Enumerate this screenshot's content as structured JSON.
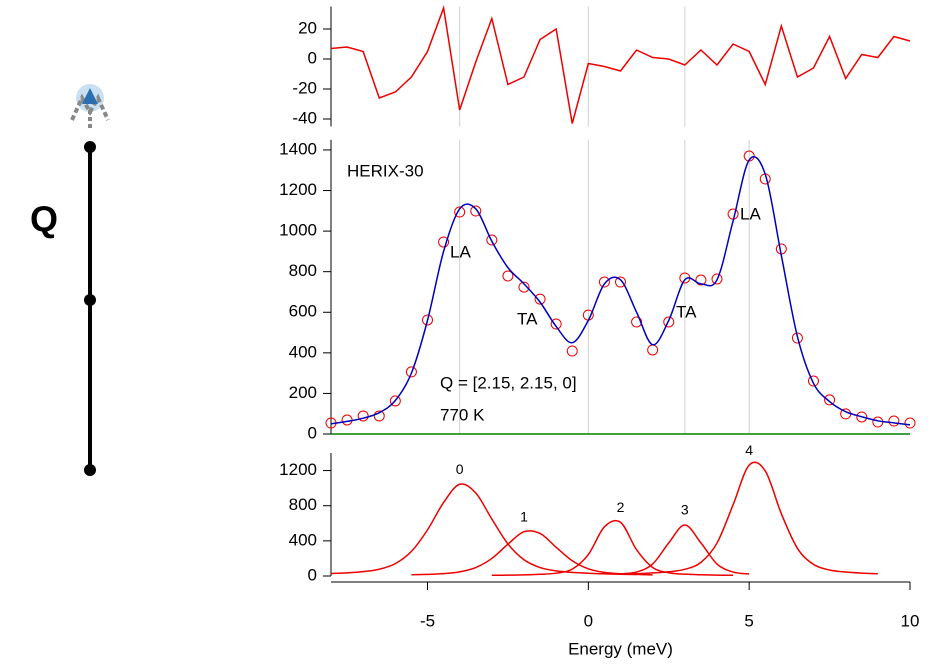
{
  "side_label": "Q",
  "chart_data": [
    {
      "type": "line",
      "x": [
        -8,
        -7.5,
        -7,
        -6.5,
        -6,
        -5.5,
        -5,
        -4.5,
        -4,
        -3.5,
        -3,
        -2.5,
        -2,
        -1.5,
        -1,
        -0.5,
        0,
        0.5,
        1,
        1.5,
        2,
        2.5,
        3,
        3.5,
        4,
        4.5,
        5,
        5.5,
        6,
        6.5,
        7,
        7.5,
        8,
        8.5,
        9,
        9.5,
        10
      ],
      "xlim": [
        -8,
        10
      ],
      "ylim": [
        -45,
        35
      ],
      "yticks": [
        -40,
        -20,
        0,
        20
      ],
      "vlines": [
        -4,
        0,
        3
      ],
      "series": [
        {
          "color": "#ee0000",
          "style": "line",
          "smooth": false,
          "values": [
            7,
            8,
            5,
            -26,
            -22,
            -12,
            5,
            34,
            -34,
            -2,
            27,
            -17,
            -12,
            13,
            20,
            -43,
            -3,
            -5,
            -8,
            6,
            1,
            0,
            -4,
            6,
            -4,
            10,
            5,
            -17,
            22,
            -12,
            -6,
            15,
            -13,
            3,
            1,
            15,
            12
          ]
        }
      ]
    },
    {
      "type": "line",
      "x": [
        -8,
        -7.5,
        -7,
        -6.5,
        -6,
        -5.5,
        -5,
        -4.5,
        -4,
        -3.5,
        -3,
        -2.5,
        -2,
        -1.5,
        -1,
        -0.5,
        0,
        0.5,
        1,
        1.5,
        2,
        2.5,
        3,
        3.5,
        4,
        4.5,
        5,
        5.5,
        6,
        6.5,
        7,
        7.5,
        8,
        8.5,
        9,
        9.5,
        10
      ],
      "xlim": [
        -8,
        10
      ],
      "ylim": [
        0,
        1450
      ],
      "yticks": [
        0,
        200,
        400,
        600,
        800,
        1000,
        1200,
        1400
      ],
      "vlines": [
        -4,
        0,
        3,
        5
      ],
      "baseline_color": "#008000",
      "annotations": [
        "HERIX-30",
        "LA",
        "TA",
        "TA",
        "LA",
        "Q = [2.15, 2.15, 0]",
        "770 K"
      ],
      "series": [
        {
          "color": "#ee0000",
          "style": "markers",
          "values": [
            54,
            69,
            89,
            89,
            163,
            306,
            562,
            946,
            1094,
            1099,
            956,
            779,
            724,
            665,
            542,
            409,
            586,
            749,
            749,
            552,
            414,
            552,
            769,
            759,
            764,
            1084,
            1370,
            1257,
            912,
            473,
            261,
            168,
            99,
            84,
            59,
            64,
            54
          ]
        },
        {
          "color": "#0000c0",
          "style": "line",
          "smooth": true,
          "values": [
            50,
            62,
            78,
            105,
            165,
            300,
            560,
            900,
            1110,
            1110,
            950,
            820,
            740,
            650,
            530,
            450,
            560,
            740,
            760,
            600,
            440,
            560,
            760,
            740,
            760,
            1050,
            1350,
            1280,
            880,
            480,
            250,
            160,
            110,
            85,
            65,
            55,
            45
          ]
        }
      ]
    },
    {
      "type": "line",
      "x": [
        -8,
        -7.5,
        -7,
        -6.5,
        -6,
        -5.5,
        -5,
        -4.5,
        -4,
        -3.5,
        -3,
        -2.5,
        -2,
        -1.5,
        -1,
        -0.5,
        0,
        0.5,
        1,
        1.5,
        2,
        2.5,
        3,
        3.5,
        4,
        4.5,
        5,
        5.5,
        6,
        6.5,
        7,
        7.5,
        8,
        8.5,
        9,
        9.5,
        10
      ],
      "xlim": [
        -8,
        10
      ],
      "ylim": [
        0,
        1400
      ],
      "yticks": [
        0,
        400,
        800,
        1200
      ],
      "xticks": [
        -5,
        0,
        5,
        10
      ],
      "xlabel": "Energy (meV)",
      "label_peaks": true,
      "series": [
        {
          "name": "0",
          "color": "#ee0000",
          "style": "line",
          "smooth": true,
          "values": [
            28,
            36,
            50,
            77,
            141,
            280,
            525,
            836,
            1044,
            945,
            648,
            365,
            185,
            96,
            58,
            41,
            31,
            25,
            20,
            17,
            null,
            null,
            null,
            null,
            null,
            null,
            null,
            null,
            null,
            null,
            null,
            null,
            null,
            null,
            null,
            null,
            null
          ]
        },
        {
          "name": "1",
          "color": "#ee0000",
          "style": "line",
          "smooth": true,
          "values": [
            null,
            null,
            null,
            null,
            null,
            14,
            19,
            27,
            47,
            96,
            200,
            362,
            504,
            484,
            327,
            174,
            82,
            41,
            25,
            18,
            13,
            null,
            null,
            null,
            null,
            null,
            null,
            null,
            null,
            null,
            null,
            null,
            null,
            null,
            null,
            null,
            null
          ]
        },
        {
          "name": "2",
          "color": "#ee0000",
          "style": "line",
          "smooth": true,
          "values": [
            null,
            null,
            null,
            null,
            null,
            null,
            null,
            null,
            null,
            null,
            8,
            10,
            13,
            20,
            32,
            78,
            244,
            560,
            612,
            299,
            97,
            37,
            21,
            14,
            10,
            8,
            null,
            null,
            null,
            null,
            null,
            null,
            null,
            null,
            null,
            null,
            null
          ]
        },
        {
          "name": "3",
          "color": "#ee0000",
          "style": "line",
          "smooth": true,
          "values": [
            null,
            null,
            null,
            null,
            null,
            null,
            null,
            null,
            null,
            null,
            null,
            null,
            null,
            null,
            null,
            null,
            null,
            null,
            23,
            45,
            136,
            377,
            580,
            377,
            136,
            45,
            23,
            null,
            null,
            null,
            null,
            null,
            null,
            null,
            null,
            null,
            null
          ]
        },
        {
          "name": "4",
          "color": "#ee0000",
          "style": "line",
          "smooth": true,
          "values": [
            null,
            null,
            null,
            null,
            null,
            null,
            null,
            null,
            null,
            null,
            null,
            null,
            null,
            null,
            null,
            null,
            null,
            null,
            21,
            26,
            35,
            48,
            76,
            155,
            375,
            810,
            1262,
            1196,
            709,
            315,
            132,
            68,
            45,
            33,
            25,
            null,
            null
          ]
        }
      ]
    }
  ]
}
